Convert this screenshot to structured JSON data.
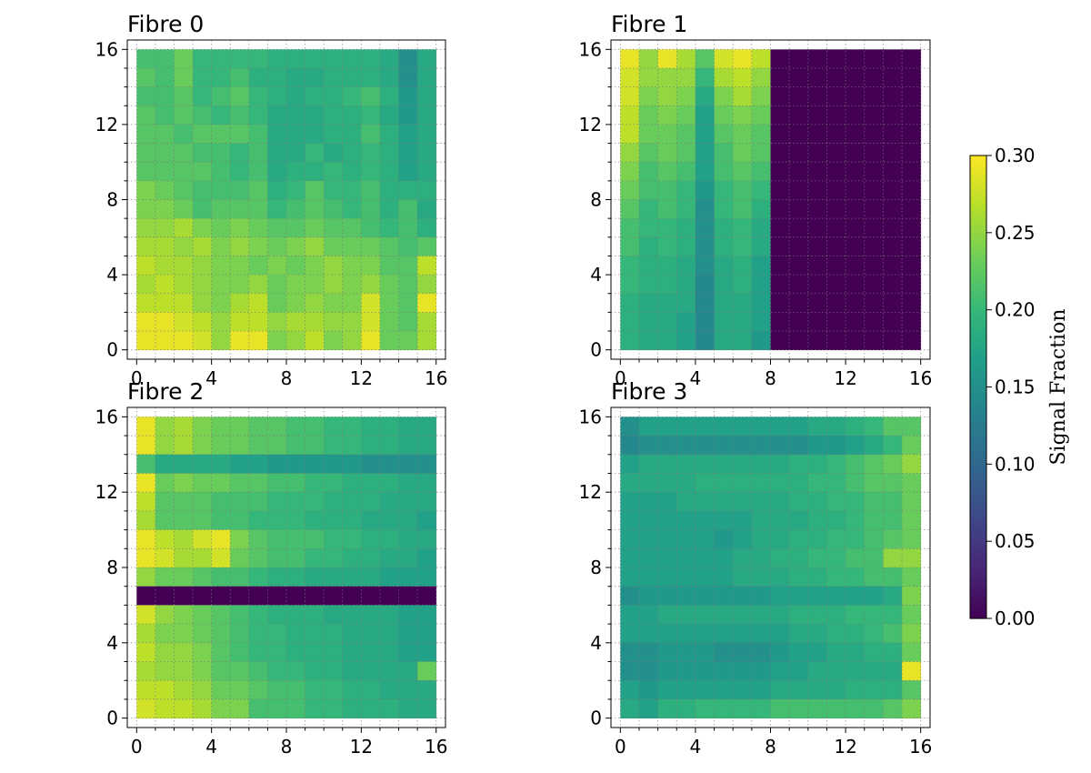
{
  "chart_data": [
    {
      "type": "heatmap",
      "title": "Fibre 0",
      "xlabel": "",
      "ylabel": "",
      "xlim": [
        -0.5,
        16.5
      ],
      "ylim": [
        -0.5,
        16.5
      ],
      "xticks": [
        "0",
        "4",
        "8",
        "12",
        "16"
      ],
      "yticks": [
        "0",
        "4",
        "8",
        "12",
        "16"
      ],
      "grid": true,
      "extent": [
        0,
        16,
        0,
        16
      ],
      "values": [
        [
          0.21,
          0.21,
          0.23,
          0.2,
          0.2,
          0.2,
          0.2,
          0.19,
          0.19,
          0.19,
          0.19,
          0.19,
          0.19,
          0.18,
          0.15,
          0.18
        ],
        [
          0.22,
          0.21,
          0.23,
          0.2,
          0.2,
          0.21,
          0.19,
          0.19,
          0.18,
          0.18,
          0.19,
          0.19,
          0.19,
          0.18,
          0.15,
          0.18
        ],
        [
          0.21,
          0.21,
          0.22,
          0.2,
          0.21,
          0.22,
          0.2,
          0.19,
          0.18,
          0.19,
          0.19,
          0.2,
          0.21,
          0.19,
          0.16,
          0.18
        ],
        [
          0.22,
          0.21,
          0.22,
          0.21,
          0.2,
          0.21,
          0.2,
          0.18,
          0.18,
          0.18,
          0.19,
          0.19,
          0.2,
          0.18,
          0.16,
          0.18
        ],
        [
          0.22,
          0.22,
          0.21,
          0.22,
          0.22,
          0.22,
          0.21,
          0.18,
          0.18,
          0.18,
          0.19,
          0.19,
          0.21,
          0.19,
          0.17,
          0.18
        ],
        [
          0.22,
          0.22,
          0.22,
          0.21,
          0.21,
          0.2,
          0.21,
          0.18,
          0.18,
          0.2,
          0.18,
          0.19,
          0.2,
          0.19,
          0.17,
          0.18
        ],
        [
          0.22,
          0.22,
          0.22,
          0.22,
          0.21,
          0.2,
          0.21,
          0.18,
          0.19,
          0.19,
          0.2,
          0.19,
          0.2,
          0.19,
          0.17,
          0.18
        ],
        [
          0.24,
          0.23,
          0.22,
          0.21,
          0.21,
          0.21,
          0.22,
          0.19,
          0.2,
          0.22,
          0.2,
          0.2,
          0.21,
          0.19,
          0.19,
          0.19
        ],
        [
          0.24,
          0.24,
          0.23,
          0.21,
          0.22,
          0.22,
          0.22,
          0.2,
          0.21,
          0.22,
          0.21,
          0.2,
          0.21,
          0.19,
          0.21,
          0.18
        ],
        [
          0.25,
          0.25,
          0.26,
          0.24,
          0.23,
          0.24,
          0.23,
          0.22,
          0.22,
          0.23,
          0.22,
          0.22,
          0.21,
          0.2,
          0.21,
          0.19
        ],
        [
          0.26,
          0.26,
          0.25,
          0.26,
          0.24,
          0.25,
          0.24,
          0.23,
          0.24,
          0.25,
          0.23,
          0.23,
          0.23,
          0.22,
          0.21,
          0.22
        ],
        [
          0.27,
          0.26,
          0.26,
          0.25,
          0.24,
          0.24,
          0.23,
          0.24,
          0.23,
          0.24,
          0.25,
          0.24,
          0.24,
          0.22,
          0.22,
          0.27
        ],
        [
          0.26,
          0.27,
          0.26,
          0.25,
          0.24,
          0.24,
          0.25,
          0.23,
          0.24,
          0.24,
          0.25,
          0.24,
          0.25,
          0.23,
          0.22,
          0.25
        ],
        [
          0.27,
          0.27,
          0.27,
          0.25,
          0.24,
          0.26,
          0.27,
          0.23,
          0.24,
          0.25,
          0.24,
          0.24,
          0.28,
          0.23,
          0.22,
          0.29
        ],
        [
          0.29,
          0.29,
          0.28,
          0.27,
          0.25,
          0.27,
          0.27,
          0.25,
          0.26,
          0.26,
          0.25,
          0.25,
          0.28,
          0.23,
          0.22,
          0.26
        ],
        [
          0.29,
          0.29,
          0.29,
          0.28,
          0.25,
          0.29,
          0.29,
          0.24,
          0.25,
          0.27,
          0.24,
          0.25,
          0.29,
          0.23,
          0.23,
          0.26
        ]
      ]
    },
    {
      "type": "heatmap",
      "title": "Fibre 1",
      "xlabel": "",
      "ylabel": "",
      "xlim": [
        -0.5,
        16.5
      ],
      "ylim": [
        -0.5,
        16.5
      ],
      "xticks": [
        "0",
        "4",
        "8",
        "12",
        "16"
      ],
      "yticks": [
        "0",
        "4",
        "8",
        "12",
        "16"
      ],
      "grid": true,
      "extent": [
        0,
        16,
        0,
        16
      ],
      "values": [
        [
          0.29,
          0.25,
          0.29,
          0.26,
          0.22,
          0.28,
          0.29,
          0.27,
          0,
          0,
          0,
          0,
          0,
          0,
          0,
          0
        ],
        [
          0.28,
          0.25,
          0.25,
          0.25,
          0.2,
          0.26,
          0.27,
          0.25,
          0,
          0,
          0,
          0,
          0,
          0,
          0,
          0
        ],
        [
          0.28,
          0.24,
          0.25,
          0.24,
          0.18,
          0.24,
          0.26,
          0.24,
          0,
          0,
          0,
          0,
          0,
          0,
          0,
          0
        ],
        [
          0.27,
          0.23,
          0.24,
          0.23,
          0.17,
          0.23,
          0.24,
          0.23,
          0,
          0,
          0,
          0,
          0,
          0,
          0,
          0
        ],
        [
          0.27,
          0.23,
          0.23,
          0.22,
          0.17,
          0.22,
          0.23,
          0.22,
          0,
          0,
          0,
          0,
          0,
          0,
          0,
          0
        ],
        [
          0.25,
          0.22,
          0.23,
          0.22,
          0.17,
          0.21,
          0.23,
          0.22,
          0,
          0,
          0,
          0,
          0,
          0,
          0,
          0
        ],
        [
          0.24,
          0.21,
          0.22,
          0.21,
          0.17,
          0.21,
          0.22,
          0.21,
          0,
          0,
          0,
          0,
          0,
          0,
          0,
          0
        ],
        [
          0.23,
          0.21,
          0.21,
          0.2,
          0.16,
          0.2,
          0.21,
          0.2,
          0,
          0,
          0,
          0,
          0,
          0,
          0,
          0
        ],
        [
          0.22,
          0.2,
          0.21,
          0.2,
          0.15,
          0.2,
          0.21,
          0.19,
          0,
          0,
          0,
          0,
          0,
          0,
          0,
          0
        ],
        [
          0.21,
          0.2,
          0.2,
          0.19,
          0.15,
          0.19,
          0.2,
          0.18,
          0,
          0,
          0,
          0,
          0,
          0,
          0,
          0
        ],
        [
          0.21,
          0.19,
          0.2,
          0.19,
          0.15,
          0.19,
          0.2,
          0.18,
          0,
          0,
          0,
          0,
          0,
          0,
          0,
          0
        ],
        [
          0.2,
          0.19,
          0.19,
          0.18,
          0.15,
          0.18,
          0.19,
          0.17,
          0,
          0,
          0,
          0,
          0,
          0,
          0,
          0
        ],
        [
          0.2,
          0.19,
          0.19,
          0.18,
          0.14,
          0.18,
          0.19,
          0.17,
          0,
          0,
          0,
          0,
          0,
          0,
          0,
          0
        ],
        [
          0.19,
          0.18,
          0.18,
          0.18,
          0.14,
          0.18,
          0.18,
          0.17,
          0,
          0,
          0,
          0,
          0,
          0,
          0,
          0
        ],
        [
          0.19,
          0.18,
          0.18,
          0.17,
          0.14,
          0.18,
          0.18,
          0.17,
          0,
          0,
          0,
          0,
          0,
          0,
          0,
          0
        ],
        [
          0.19,
          0.18,
          0.18,
          0.17,
          0.14,
          0.18,
          0.18,
          0.16,
          0,
          0,
          0,
          0,
          0,
          0,
          0,
          0
        ]
      ]
    },
    {
      "type": "heatmap",
      "title": "Fibre 2",
      "xlabel": "",
      "ylabel": "",
      "xlim": [
        -0.5,
        16.5
      ],
      "ylim": [
        -0.5,
        16.5
      ],
      "xticks": [
        "0",
        "4",
        "8",
        "12",
        "16"
      ],
      "yticks": [
        "0",
        "4",
        "8",
        "12",
        "16"
      ],
      "grid": true,
      "extent": [
        0,
        16,
        0,
        16
      ],
      "values": [
        [
          0.29,
          0.25,
          0.26,
          0.24,
          0.23,
          0.23,
          0.22,
          0.22,
          0.21,
          0.21,
          0.2,
          0.2,
          0.19,
          0.19,
          0.18,
          0.18
        ],
        [
          0.29,
          0.25,
          0.26,
          0.24,
          0.23,
          0.23,
          0.22,
          0.22,
          0.21,
          0.21,
          0.2,
          0.2,
          0.19,
          0.19,
          0.18,
          0.18
        ],
        [
          0.21,
          0.18,
          0.18,
          0.18,
          0.18,
          0.17,
          0.17,
          0.16,
          0.16,
          0.16,
          0.16,
          0.16,
          0.15,
          0.15,
          0.15,
          0.15
        ],
        [
          0.29,
          0.23,
          0.24,
          0.23,
          0.23,
          0.22,
          0.22,
          0.21,
          0.21,
          0.2,
          0.2,
          0.19,
          0.19,
          0.19,
          0.18,
          0.18
        ],
        [
          0.27,
          0.22,
          0.22,
          0.22,
          0.21,
          0.21,
          0.21,
          0.2,
          0.2,
          0.2,
          0.19,
          0.19,
          0.19,
          0.18,
          0.18,
          0.18
        ],
        [
          0.26,
          0.22,
          0.22,
          0.22,
          0.21,
          0.21,
          0.2,
          0.2,
          0.2,
          0.19,
          0.19,
          0.19,
          0.18,
          0.18,
          0.18,
          0.17
        ],
        [
          0.29,
          0.27,
          0.26,
          0.28,
          0.29,
          0.24,
          0.22,
          0.21,
          0.21,
          0.21,
          0.2,
          0.2,
          0.19,
          0.19,
          0.18,
          0.18
        ],
        [
          0.29,
          0.28,
          0.26,
          0.26,
          0.28,
          0.23,
          0.22,
          0.21,
          0.21,
          0.2,
          0.2,
          0.19,
          0.19,
          0.18,
          0.18,
          0.17
        ],
        [
          0.25,
          0.23,
          0.23,
          0.22,
          0.21,
          0.21,
          0.2,
          0.19,
          0.19,
          0.18,
          0.18,
          0.18,
          0.18,
          0.17,
          0.17,
          0.17
        ],
        [
          0,
          0,
          0,
          0,
          0,
          0,
          0,
          0,
          0,
          0,
          0,
          0,
          0,
          0,
          0,
          0
        ],
        [
          0.28,
          0.25,
          0.24,
          0.23,
          0.22,
          0.21,
          0.2,
          0.19,
          0.19,
          0.19,
          0.18,
          0.18,
          0.18,
          0.18,
          0.17,
          0.17
        ],
        [
          0.26,
          0.24,
          0.24,
          0.23,
          0.22,
          0.21,
          0.2,
          0.2,
          0.19,
          0.19,
          0.19,
          0.18,
          0.18,
          0.18,
          0.17,
          0.17
        ],
        [
          0.27,
          0.25,
          0.25,
          0.24,
          0.22,
          0.21,
          0.2,
          0.2,
          0.19,
          0.19,
          0.19,
          0.18,
          0.18,
          0.18,
          0.17,
          0.17
        ],
        [
          0.26,
          0.25,
          0.25,
          0.24,
          0.22,
          0.22,
          0.21,
          0.2,
          0.2,
          0.19,
          0.19,
          0.18,
          0.18,
          0.18,
          0.18,
          0.23
        ],
        [
          0.27,
          0.27,
          0.26,
          0.25,
          0.23,
          0.23,
          0.22,
          0.21,
          0.21,
          0.2,
          0.2,
          0.19,
          0.19,
          0.18,
          0.18,
          0.18
        ],
        [
          0.28,
          0.27,
          0.27,
          0.26,
          0.24,
          0.24,
          0.21,
          0.21,
          0.21,
          0.2,
          0.2,
          0.19,
          0.19,
          0.19,
          0.18,
          0.18
        ]
      ]
    },
    {
      "type": "heatmap",
      "title": "Fibre 3",
      "xlabel": "",
      "ylabel": "",
      "xlim": [
        -0.5,
        16.5
      ],
      "ylim": [
        -0.5,
        16.5
      ],
      "xticks": [
        "0",
        "4",
        "8",
        "12",
        "16"
      ],
      "yticks": [
        "0",
        "4",
        "8",
        "12",
        "16"
      ],
      "grid": true,
      "extent": [
        0,
        16,
        0,
        16
      ],
      "values": [
        [
          0.15,
          0.17,
          0.17,
          0.17,
          0.17,
          0.17,
          0.17,
          0.17,
          0.17,
          0.17,
          0.18,
          0.18,
          0.19,
          0.2,
          0.22,
          0.22
        ],
        [
          0.14,
          0.15,
          0.15,
          0.15,
          0.15,
          0.15,
          0.15,
          0.15,
          0.15,
          0.15,
          0.16,
          0.16,
          0.17,
          0.18,
          0.2,
          0.23
        ],
        [
          0.17,
          0.18,
          0.18,
          0.18,
          0.18,
          0.18,
          0.18,
          0.18,
          0.18,
          0.19,
          0.19,
          0.2,
          0.21,
          0.22,
          0.23,
          0.25
        ],
        [
          0.18,
          0.18,
          0.18,
          0.18,
          0.19,
          0.19,
          0.19,
          0.19,
          0.19,
          0.19,
          0.2,
          0.2,
          0.21,
          0.22,
          0.22,
          0.23
        ],
        [
          0.17,
          0.17,
          0.17,
          0.18,
          0.18,
          0.18,
          0.18,
          0.18,
          0.18,
          0.19,
          0.19,
          0.2,
          0.2,
          0.21,
          0.21,
          0.23
        ],
        [
          0.17,
          0.17,
          0.17,
          0.17,
          0.17,
          0.17,
          0.17,
          0.18,
          0.18,
          0.18,
          0.19,
          0.19,
          0.2,
          0.21,
          0.21,
          0.23
        ],
        [
          0.17,
          0.17,
          0.17,
          0.17,
          0.17,
          0.16,
          0.17,
          0.18,
          0.18,
          0.19,
          0.19,
          0.2,
          0.2,
          0.21,
          0.22,
          0.23
        ],
        [
          0.17,
          0.17,
          0.17,
          0.17,
          0.17,
          0.17,
          0.18,
          0.18,
          0.19,
          0.19,
          0.2,
          0.2,
          0.21,
          0.21,
          0.25,
          0.25
        ],
        [
          0.17,
          0.17,
          0.17,
          0.17,
          0.17,
          0.17,
          0.18,
          0.18,
          0.18,
          0.19,
          0.19,
          0.2,
          0.2,
          0.21,
          0.21,
          0.23
        ],
        [
          0.15,
          0.16,
          0.16,
          0.16,
          0.16,
          0.16,
          0.16,
          0.16,
          0.17,
          0.17,
          0.17,
          0.17,
          0.17,
          0.17,
          0.18,
          0.24
        ],
        [
          0.17,
          0.17,
          0.18,
          0.18,
          0.18,
          0.18,
          0.18,
          0.18,
          0.18,
          0.19,
          0.19,
          0.19,
          0.2,
          0.2,
          0.2,
          0.23
        ],
        [
          0.17,
          0.17,
          0.17,
          0.17,
          0.17,
          0.17,
          0.17,
          0.17,
          0.17,
          0.18,
          0.18,
          0.19,
          0.19,
          0.2,
          0.21,
          0.24
        ],
        [
          0.15,
          0.15,
          0.16,
          0.16,
          0.16,
          0.15,
          0.15,
          0.15,
          0.16,
          0.17,
          0.17,
          0.18,
          0.18,
          0.19,
          0.19,
          0.23
        ],
        [
          0.15,
          0.15,
          0.16,
          0.16,
          0.16,
          0.16,
          0.16,
          0.16,
          0.17,
          0.17,
          0.18,
          0.18,
          0.18,
          0.18,
          0.18,
          0.29
        ],
        [
          0.17,
          0.16,
          0.17,
          0.17,
          0.17,
          0.17,
          0.17,
          0.17,
          0.18,
          0.18,
          0.18,
          0.18,
          0.19,
          0.19,
          0.19,
          0.22
        ],
        [
          0.18,
          0.17,
          0.19,
          0.19,
          0.2,
          0.2,
          0.2,
          0.2,
          0.21,
          0.21,
          0.21,
          0.21,
          0.21,
          0.21,
          0.22,
          0.24
        ]
      ]
    }
  ],
  "colorbar": {
    "label": "Signal Fraction",
    "min": 0.0,
    "max": 0.3,
    "ticks": [
      "0.00",
      "0.05",
      "0.10",
      "0.15",
      "0.20",
      "0.25",
      "0.30"
    ],
    "tick_values": [
      0.0,
      0.05,
      0.1,
      0.15,
      0.2,
      0.25,
      0.3
    ],
    "colormap": "viridis"
  }
}
